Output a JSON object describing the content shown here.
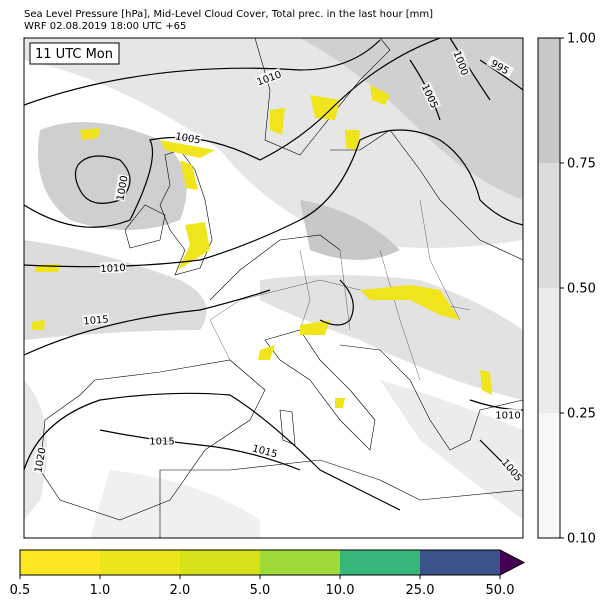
{
  "header": {
    "line1": "Sea Level Pressure [hPa], Mid-Level Cloud Cover, Total prec. in the last hour [mm]",
    "line2": "WRF 02.08.2019 18:00 UTC +65"
  },
  "time_label": "11 UTC Mon",
  "contour_labels": [
    "1010",
    "1000",
    "995",
    "1005",
    "1005",
    "1000",
    "1010",
    "1015",
    "1015",
    "1015",
    "1020",
    "1010",
    "1005"
  ],
  "cloud_colorbar": {
    "ticks": [
      "0.10",
      "0.25",
      "0.50",
      "0.75",
      "1.00"
    ]
  },
  "precip_colorbar": {
    "ticks": [
      "0.5",
      "1.0",
      "2.0",
      "5.0",
      "10.0",
      "25.0",
      "50.0"
    ]
  }
}
